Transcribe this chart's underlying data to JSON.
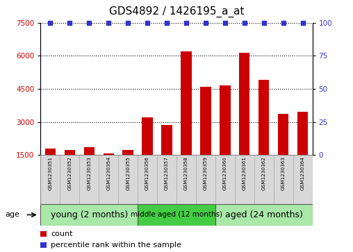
{
  "title": "GDS4892 / 1426195_a_at",
  "samples": [
    "GSM1230351",
    "GSM1230352",
    "GSM1230353",
    "GSM1230354",
    "GSM1230355",
    "GSM1230356",
    "GSM1230357",
    "GSM1230358",
    "GSM1230359",
    "GSM1230360",
    "GSM1230361",
    "GSM1230362",
    "GSM1230363",
    "GSM1230364"
  ],
  "counts": [
    1780,
    1720,
    1850,
    1580,
    1720,
    3200,
    2850,
    6200,
    4600,
    4650,
    6150,
    4900,
    3350,
    3450
  ],
  "ylim_left": [
    1500,
    7500
  ],
  "ylim_right": [
    0,
    100
  ],
  "yticks_left": [
    1500,
    3000,
    4500,
    6000,
    7500
  ],
  "yticks_right": [
    0,
    25,
    50,
    75,
    100
  ],
  "bar_color": "#cc0000",
  "dot_color": "#3333cc",
  "bar_width": 0.55,
  "groups": [
    {
      "label": "young (2 months)",
      "start": 0,
      "end": 5,
      "color": "#aae8aa",
      "fontsize": 9
    },
    {
      "label": "middle aged (12 months)",
      "start": 5,
      "end": 9,
      "color": "#44cc44",
      "fontsize": 7.5
    },
    {
      "label": "aged (24 months)",
      "start": 9,
      "end": 14,
      "color": "#aae8aa",
      "fontsize": 9
    }
  ],
  "age_label": "age",
  "legend_count_label": "count",
  "legend_pct_label": "percentile rank within the sample",
  "grid_color": "#000000",
  "background_color": "#ffffff",
  "label_area_color": "#cccccc",
  "title_fontsize": 11,
  "tick_fontsize": 7.5,
  "sample_label_fontsize": 5.2
}
